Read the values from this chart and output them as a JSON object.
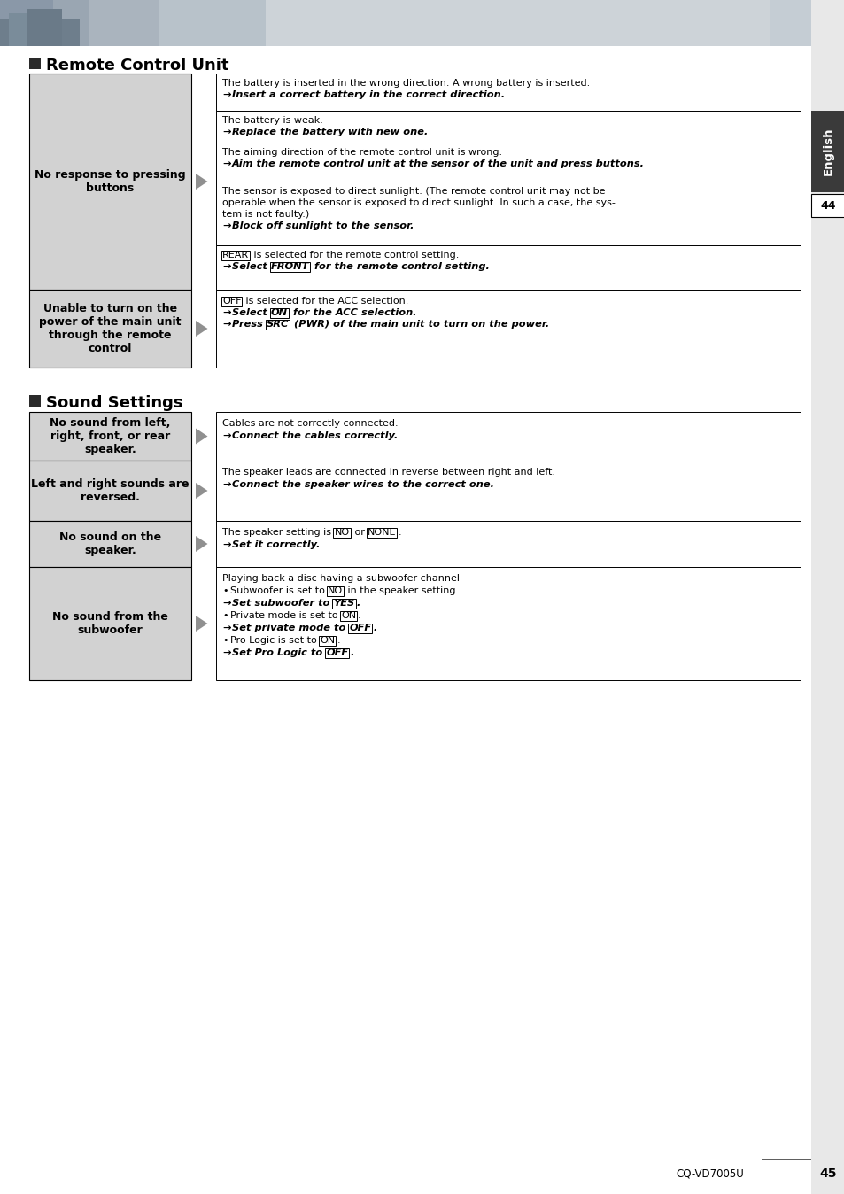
{
  "bg_color": "#ffffff",
  "section1_title": "Remote Control Unit",
  "section2_title": "Sound Settings",
  "left_col_bg": "#d2d2d2",
  "rc_row1_left": "No response to pressing\nbuttons",
  "rc_row1_cells": [
    [
      "The battery is inserted in the wrong direction. A wrong battery is inserted.",
      "→Insert a correct battery in the correct direction."
    ],
    [
      "The battery is weak.",
      "→Replace the battery with new one."
    ],
    [
      "The aiming direction of the remote control unit is wrong.",
      "→Aim the remote control unit at the sensor of the unit and press buttons."
    ],
    [
      "The sensor is exposed to direct sunlight. (The remote control unit may not be",
      "operable when the sensor is exposed to direct sunlight. In such a case, the sys-",
      "tem is not faulty.)",
      "→Block off sunlight to the sensor."
    ],
    [
      "[REAR] is selected for the remote control setting.",
      "→Select [FRONT] for the remote control setting."
    ]
  ],
  "rc_row2_left": "Unable to turn on the\npower of the main unit\nthrough the remote\ncontrol",
  "rc_row2_cells": [
    [
      "[OFF] is selected for the ACC selection.",
      "→Select [ON] for the ACC selection.",
      "→Press [SRC] (PWR) of the main unit to turn on the power."
    ]
  ],
  "sound_row1_left": "No sound from left,\nright, front, or rear\nspeaker.",
  "sound_row1_cells": [
    [
      "Cables are not correctly connected.",
      "→Connect the cables correctly."
    ]
  ],
  "sound_row2_left": "Left and right sounds are\nreversed.",
  "sound_row2_cells": [
    [
      "The speaker leads are connected in reverse between right and left.",
      "→Connect the speaker wires to the correct one."
    ]
  ],
  "sound_row3_left": "No sound on the\nspeaker.",
  "sound_row3_cells": [
    [
      "The speaker setting is [NO] or [NONE].",
      "→Set it correctly."
    ]
  ],
  "sound_row4_left": "No sound from the\nsubwoofer",
  "sound_row4_cells": [
    [
      "Playing back a disc having a subwoofer channel",
      "•Subwoofer is set to [NO] in the speaker setting.",
      "  →Set subwoofer to [YES].",
      "•Private mode is set to [ON].",
      "  →Set private mode to [OFF].",
      "•Pro Logic is set to [ON].",
      "  →Set Pro Logic to [OFF]."
    ]
  ]
}
